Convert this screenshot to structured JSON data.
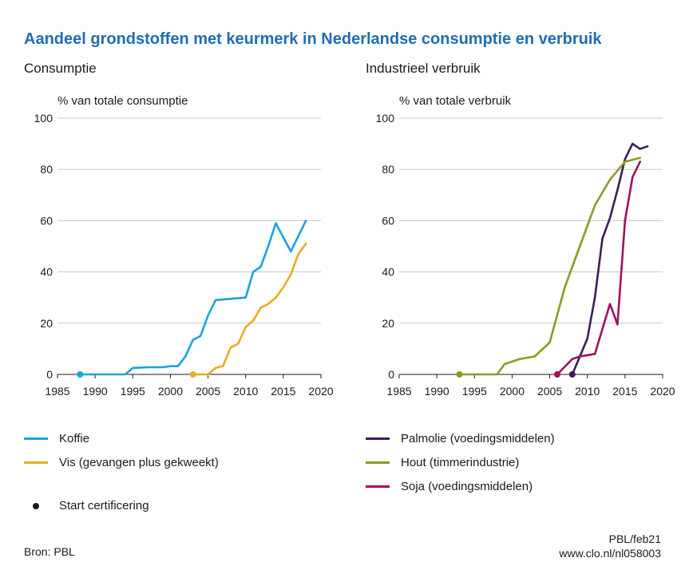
{
  "title": "Aandeel grondstoffen met keurmerk in Nederlandse consumptie en verbruik",
  "source": "Bron: PBL",
  "credit": "PBL/feb21",
  "url": "www.clo.nl/nl058003",
  "legend": {
    "start_label": "Start certificering"
  },
  "chart_data": [
    {
      "type": "line",
      "panel": "left",
      "title": "Consumptie",
      "ylabel": "% van totale consumptie",
      "xlabel": "",
      "xlim": [
        1985,
        2020
      ],
      "ylim": [
        0,
        100
      ],
      "xticks": [
        1985,
        1990,
        1995,
        2000,
        2005,
        2010,
        2015,
        2020
      ],
      "yticks": [
        0,
        20,
        40,
        60,
        80,
        100
      ],
      "grid": true,
      "series": [
        {
          "name": "Koffie",
          "color": "#1ba3dc",
          "start": 1988,
          "x": [
            1988,
            1994,
            1995,
            1997,
            1999,
            2000,
            2001,
            2002,
            2003,
            2004,
            2005,
            2006,
            2010,
            2011,
            2012,
            2013,
            2014,
            2015,
            2016,
            2017,
            2018
          ],
          "y": [
            0,
            0,
            2.5,
            2.8,
            2.8,
            3.2,
            3.2,
            7,
            13.5,
            15,
            23,
            29,
            30,
            40,
            42,
            50,
            59,
            53.5,
            48,
            54,
            60
          ]
        },
        {
          "name": "Vis (gevangen plus gekweekt)",
          "color": "#e8ad23",
          "start": 2003,
          "x": [
            2003,
            2005,
            2006,
            2007,
            2008,
            2009,
            2010,
            2011,
            2012,
            2013,
            2014,
            2015,
            2016,
            2017,
            2018
          ],
          "y": [
            0,
            0,
            2.5,
            3.3,
            10.5,
            12,
            18.5,
            21,
            26,
            27.5,
            30,
            34,
            39,
            47,
            51
          ]
        }
      ]
    },
    {
      "type": "line",
      "panel": "right",
      "title": "Industrieel verbruik",
      "ylabel": "% van totale verbruik",
      "xlabel": "",
      "xlim": [
        1985,
        2020
      ],
      "ylim": [
        0,
        100
      ],
      "xticks": [
        1985,
        1990,
        1995,
        2000,
        2005,
        2010,
        2015,
        2020
      ],
      "yticks": [
        0,
        20,
        40,
        60,
        80,
        100
      ],
      "grid": true,
      "series": [
        {
          "name": "Palmolie (voedingsmiddelen)",
          "color": "#3a1e5c",
          "start": 2008,
          "x": [
            2008,
            2010,
            2011,
            2012,
            2013,
            2014,
            2015,
            2016,
            2017,
            2018
          ],
          "y": [
            0,
            14,
            30,
            53,
            61,
            72,
            84,
            90,
            88,
            89
          ]
        },
        {
          "name": "Hout (timmerindustrie)",
          "color": "#8b9a24",
          "start": 1993,
          "x": [
            1993,
            1998,
            1999,
            2001,
            2003,
            2005,
            2007,
            2009,
            2011,
            2013,
            2015,
            2017
          ],
          "y": [
            0,
            0,
            4,
            6,
            7,
            12.5,
            34,
            50,
            66,
            76,
            83,
            84.5
          ]
        },
        {
          "name": "Soja (voedingsmiddelen)",
          "color": "#a0105f",
          "start": 2006,
          "x": [
            2006,
            2007,
            2008,
            2009,
            2010,
            2011,
            2013,
            2014,
            2015,
            2016,
            2017
          ],
          "y": [
            0,
            3,
            6,
            7,
            7.5,
            8,
            27.5,
            19.5,
            60,
            77,
            83
          ]
        }
      ]
    }
  ]
}
